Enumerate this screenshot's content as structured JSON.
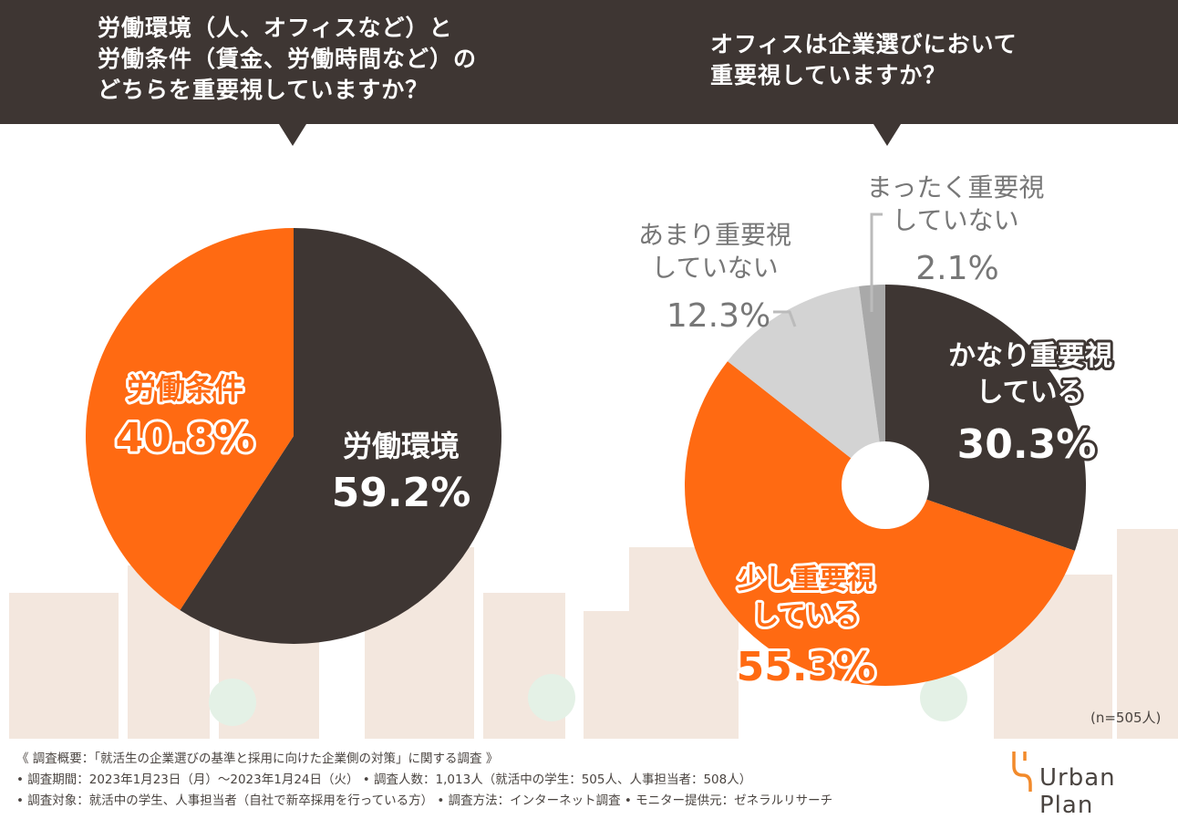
{
  "header": {
    "left_question": "労働環境（人、オフィスなど）と\n労働条件（賃金、労働時間など）の\nどちらを重要視していますか？",
    "right_question": "オフィスは企業選びにおいて\n重要視していますか？"
  },
  "colors": {
    "dark": "#3e3633",
    "orange": "#ff6a12",
    "light_gray": "#d3d3d3",
    "mid_gray": "#a9a9a9",
    "label_gray": "#777777",
    "white": "#ffffff"
  },
  "chart_data": [
    {
      "type": "pie",
      "title": "労働環境（人、オフィスなど）と労働条件（賃金、労働時間など）のどちらを重要視していますか？",
      "categories": [
        "労働環境",
        "労働条件"
      ],
      "values": [
        59.2,
        40.8
      ],
      "labels": [
        {
          "name": "労働環境",
          "value_text": "59.2%"
        },
        {
          "name": "労働条件",
          "value_text": "40.8%"
        }
      ]
    },
    {
      "type": "pie",
      "style": "donut",
      "title": "オフィスは企業選びにおいて重要視していますか？",
      "categories": [
        "かなり重要視している",
        "少し重要視している",
        "あまり重要視していない",
        "まったく重要視していない"
      ],
      "values": [
        30.3,
        55.3,
        12.3,
        2.1
      ],
      "labels": [
        {
          "line1": "かなり重要視",
          "line2": "している",
          "value_text": "30.3%"
        },
        {
          "line1": "少し重要視",
          "line2": "している",
          "value_text": "55.3%"
        },
        {
          "line1": "あまり重要視",
          "line2": "していない",
          "value_text": "12.3%"
        },
        {
          "line1": "まったく重要視",
          "line2": "していない",
          "value_text": "2.1%"
        }
      ],
      "note": "(n=505人)"
    }
  ],
  "footer": {
    "line1": "《 調査概要：「就活生の企業選びの基準と採用に向けた企業側の対策」に関する調査 》",
    "line2": "• 調査期間：2023年1月23日（月）～2023年1月24日（火） • 調査人数：1,013人（就活中の学生：505人、人事担当者：508人）",
    "line3": "• 調査対象：就活中の学生、人事担当者（自社で新卒採用を行っている方） • 調査方法：インターネット調査 • モニター提供元：ゼネラルリサーチ"
  },
  "logo": {
    "text": "Urban Plan",
    "icon": "urban-plan-logo-icon"
  }
}
